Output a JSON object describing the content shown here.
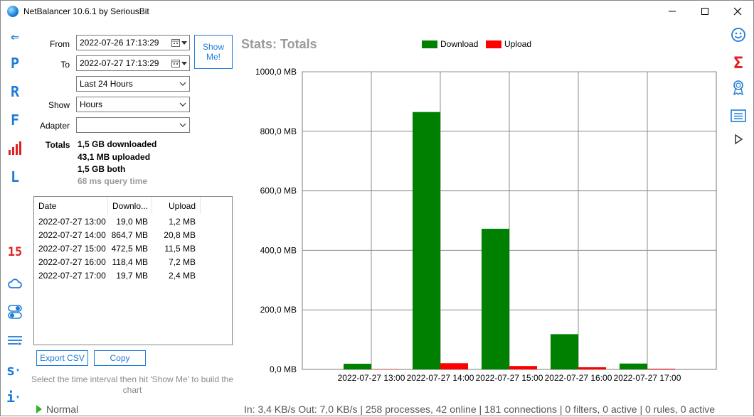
{
  "window": {
    "title": "NetBalancer 10.6.1 by SeriousBit"
  },
  "left_rail": [
    {
      "name": "back-arrow-icon",
      "glyph": "⇐"
    },
    {
      "name": "processes-letter-icon",
      "glyph": "P"
    },
    {
      "name": "rules-letter-icon",
      "glyph": "R"
    },
    {
      "name": "filters-letter-icon",
      "glyph": "F"
    },
    {
      "name": "stats-bars-icon",
      "glyph": ""
    },
    {
      "name": "log-letter-icon",
      "glyph": "L"
    },
    {
      "name": "calendar-15-icon",
      "glyph": "15"
    },
    {
      "name": "cloud-icon",
      "glyph": ""
    },
    {
      "name": "toggle-icon",
      "glyph": ""
    },
    {
      "name": "menu-lines-icon",
      "glyph": ""
    },
    {
      "name": "s-dropdown-icon",
      "glyph": "s"
    },
    {
      "name": "info-dropdown-icon",
      "glyph": "i"
    }
  ],
  "form": {
    "from_label": "From",
    "from_value": "2022-07-26 17:13:29",
    "to_label": "To",
    "to_value": "2022-07-27 17:13:29",
    "range_value": "Last 24 Hours",
    "show_label": "Show",
    "show_value": "Hours",
    "adapter_label": "Adapter",
    "adapter_value": "",
    "show_me_line1": "Show",
    "show_me_line2": "Me!"
  },
  "totals": {
    "label": "Totals",
    "downloaded": "1,5 GB downloaded",
    "uploaded": "43,1 MB uploaded",
    "both": "1,5 GB both",
    "query_time": "68 ms query time"
  },
  "table": {
    "columns": [
      "Date",
      "Downlo...",
      "Upload"
    ],
    "rows": [
      [
        "2022-07-27 13:00",
        "19,0 MB",
        "1,2 MB"
      ],
      [
        "2022-07-27 14:00",
        "864,7 MB",
        "20,8 MB"
      ],
      [
        "2022-07-27 15:00",
        "472,5 MB",
        "11,5 MB"
      ],
      [
        "2022-07-27 16:00",
        "118,4 MB",
        "7,2 MB"
      ],
      [
        "2022-07-27 17:00",
        "19,7 MB",
        "2,4 MB"
      ]
    ]
  },
  "buttons": {
    "export_csv": "Export CSV",
    "copy": "Copy"
  },
  "hint": "Select the time interval then hit 'Show Me' to build the chart",
  "colors": {
    "accent": "#1e7bd8",
    "download": "#008000",
    "upload": "#ff0000"
  },
  "chart_data": {
    "type": "bar",
    "title": "Stats: Totals",
    "categories": [
      "2022-07-27 13:00",
      "2022-07-27 14:00",
      "2022-07-27 15:00",
      "2022-07-27 16:00",
      "2022-07-27 17:00"
    ],
    "series": [
      {
        "name": "Download",
        "values": [
          19.0,
          864.7,
          472.5,
          118.4,
          19.7
        ],
        "color": "#008000"
      },
      {
        "name": "Upload",
        "values": [
          1.2,
          20.8,
          11.5,
          7.2,
          2.4
        ],
        "color": "#ff0000"
      }
    ],
    "ylim": [
      0,
      1000
    ],
    "yticks": [
      0,
      200,
      400,
      600,
      800,
      1000
    ],
    "ytick_labels": [
      "0,0 MB",
      "200,0 MB",
      "400,0 MB",
      "600,0 MB",
      "800,0 MB",
      "1000,0 MB"
    ],
    "grid": true,
    "legend": "top"
  },
  "status": {
    "mode": "Normal",
    "text": "In: 3,4 KB/s  Out: 7,0 KB/s  |  258 processes, 42 online  | 181 connections  | 0 filters, 0 active  |  0 rules, 0 active"
  }
}
